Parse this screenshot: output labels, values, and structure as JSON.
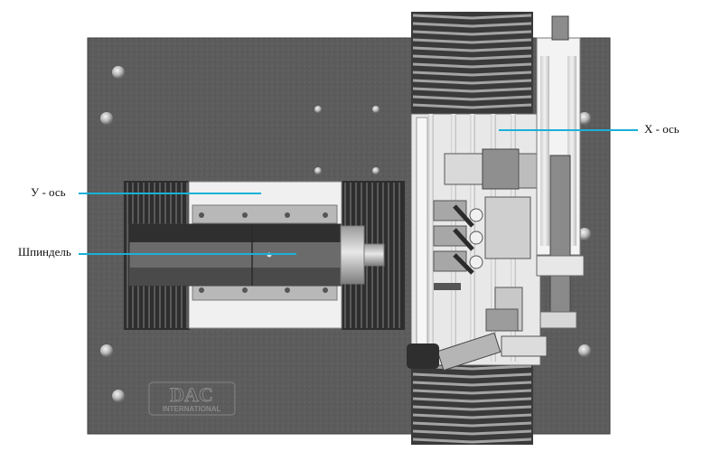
{
  "labels": {
    "y_axis": "У - ось",
    "spindle": "Шпиндель",
    "x_axis": "X - ось"
  },
  "logo": {
    "brand": "DAC",
    "sub": "INTERNATIONAL"
  },
  "colors": {
    "callout": "#1ab0d8",
    "plate": "#5a5a5a"
  }
}
